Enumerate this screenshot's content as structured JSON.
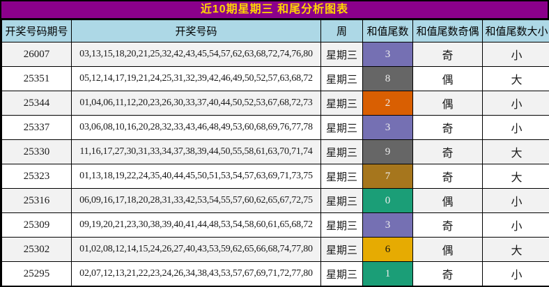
{
  "title": "近10期星期三 和尾分析图表",
  "colors": {
    "title_bg": "#8B008B",
    "title_text": "#FFD700",
    "header_bg": "#ADD8E6",
    "row_odd_bg": "#F2F2F2",
    "row_even_bg": "#FFFFFF",
    "border": "#000000",
    "tail_teal": "#1B9E77",
    "tail_orange": "#D95F02",
    "tail_purple": "#7570B3",
    "tail_yellow": "#E6AB02",
    "tail_brown": "#A6761D",
    "tail_gray": "#666666"
  },
  "table": {
    "headers": [
      "开奖号码期号",
      "开奖号码",
      "周",
      "和值尾数",
      "和值尾数奇偶",
      "和值尾数大小"
    ],
    "rows": [
      {
        "period": "26007",
        "numbers": "03,13,15,18,20,21,25,32,42,43,45,54,57,62,63,68,72,74,76,80",
        "week": "星期三",
        "tail": "3",
        "tail_bg": "#7570B3",
        "tail_fg": "#EDEDED",
        "parity": "奇",
        "size": "小"
      },
      {
        "period": "25351",
        "numbers": "05,12,14,17,19,21,24,25,31,32,39,42,46,49,50,52,57,63,68,72",
        "week": "星期三",
        "tail": "8",
        "tail_bg": "#666666",
        "tail_fg": "#EDEDED",
        "parity": "偶",
        "size": "大"
      },
      {
        "period": "25344",
        "numbers": "01,04,06,11,12,20,23,26,30,33,37,40,44,50,52,53,67,68,72,73",
        "week": "星期三",
        "tail": "2",
        "tail_bg": "#D95F02",
        "tail_fg": "#EDEDED",
        "parity": "偶",
        "size": "小"
      },
      {
        "period": "25337",
        "numbers": "03,06,08,10,16,20,28,32,33,43,46,48,49,53,60,68,69,76,77,78",
        "week": "星期三",
        "tail": "3",
        "tail_bg": "#7570B3",
        "tail_fg": "#EDEDED",
        "parity": "奇",
        "size": "小"
      },
      {
        "period": "25330",
        "numbers": "11,16,17,27,30,31,33,34,37,38,39,44,50,55,58,61,63,70,71,74",
        "week": "星期三",
        "tail": "9",
        "tail_bg": "#666666",
        "tail_fg": "#EDEDED",
        "parity": "奇",
        "size": "大"
      },
      {
        "period": "25323",
        "numbers": "01,13,18,19,22,24,35,40,44,45,50,51,53,54,57,63,69,71,73,75",
        "week": "星期三",
        "tail": "7",
        "tail_bg": "#A6761D",
        "tail_fg": "#EDEDED",
        "parity": "奇",
        "size": "大"
      },
      {
        "period": "25316",
        "numbers": "06,09,16,17,18,20,28,31,33,42,53,54,55,57,60,62,65,67,72,75",
        "week": "星期三",
        "tail": "0",
        "tail_bg": "#1B9E77",
        "tail_fg": "#EDEDED",
        "parity": "偶",
        "size": "小"
      },
      {
        "period": "25309",
        "numbers": "09,19,20,21,23,30,38,39,40,41,44,48,53,54,58,60,61,65,68,72",
        "week": "星期三",
        "tail": "3",
        "tail_bg": "#7570B3",
        "tail_fg": "#EDEDED",
        "parity": "奇",
        "size": "小"
      },
      {
        "period": "25302",
        "numbers": "01,02,08,12,14,15,24,26,27,40,43,53,59,62,65,66,68,74,77,80",
        "week": "星期三",
        "tail": "6",
        "tail_bg": "#E6AB02",
        "tail_fg": "#111111",
        "parity": "偶",
        "size": "大"
      },
      {
        "period": "25295",
        "numbers": "02,07,12,13,21,22,23,24,26,34,38,43,53,57,67,69,71,72,77,80",
        "week": "星期三",
        "tail": "1",
        "tail_bg": "#1B9E77",
        "tail_fg": "#EDEDED",
        "parity": "奇",
        "size": "小"
      }
    ]
  }
}
